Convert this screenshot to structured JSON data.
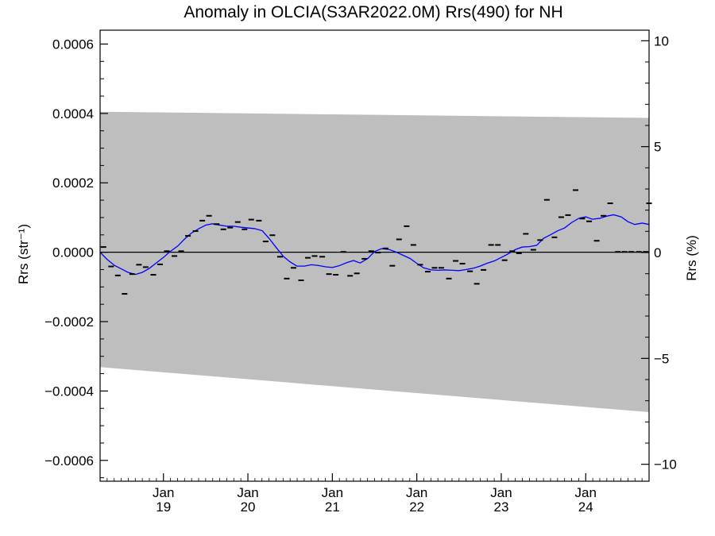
{
  "chart_data": {
    "type": "line",
    "title": "Anomaly in OLCIA(S3AR2022.0M) Rrs(490) for NH",
    "ylabel": "Rrs (str⁻¹)",
    "ylabel_right": "Rrs (%)",
    "ylim": [
      -0.00066,
      0.00064
    ],
    "ylim_right": [
      -10.8,
      10.5
    ],
    "xlim": [
      2018.25,
      2024.75
    ],
    "y_ticks": [
      {
        "value": 0.0006,
        "label": "0.0006"
      },
      {
        "value": 0.0004,
        "label": "0.0004"
      },
      {
        "value": 0.0002,
        "label": "0.0002"
      },
      {
        "value": 0.0,
        "label": "0.0000"
      },
      {
        "value": -0.0002,
        "label": "−0.0002"
      },
      {
        "value": -0.0004,
        "label": "−0.0004"
      },
      {
        "value": -0.0006,
        "label": "−0.0006"
      }
    ],
    "y_ticks_right": [
      {
        "value": 10,
        "label": "10"
      },
      {
        "value": 5,
        "label": "5"
      },
      {
        "value": 0,
        "label": "0"
      },
      {
        "value": -5,
        "label": "−5"
      },
      {
        "value": -10,
        "label": "−10"
      }
    ],
    "x_ticks": [
      {
        "value": 2019.0,
        "label": "Jan",
        "sublabel": "19"
      },
      {
        "value": 2020.0,
        "label": "Jan",
        "sublabel": "20"
      },
      {
        "value": 2021.0,
        "label": "Jan",
        "sublabel": "21"
      },
      {
        "value": 2022.0,
        "label": "Jan",
        "sublabel": "22"
      },
      {
        "value": 2023.0,
        "label": "Jan",
        "sublabel": "23"
      },
      {
        "value": 2024.0,
        "label": "Jan",
        "sublabel": "24"
      }
    ],
    "band": {
      "x": [
        2018.25,
        2024.75
      ],
      "upper": [
        0.000405,
        0.000387
      ],
      "lower": [
        -0.000331,
        -0.000461
      ],
      "color": "#bebebe"
    },
    "zero_line": 0.0,
    "monthly_points": {
      "color": "#000000",
      "x": [
        2018.29,
        2018.38,
        2018.46,
        2018.54,
        2018.63,
        2018.71,
        2018.79,
        2018.88,
        2018.96,
        2019.04,
        2019.13,
        2019.21,
        2019.29,
        2019.38,
        2019.46,
        2019.54,
        2019.63,
        2019.71,
        2019.79,
        2019.88,
        2019.96,
        2020.04,
        2020.13,
        2020.21,
        2020.29,
        2020.38,
        2020.46,
        2020.54,
        2020.63,
        2020.71,
        2020.79,
        2020.88,
        2020.96,
        2021.04,
        2021.13,
        2021.21,
        2021.29,
        2021.38,
        2021.46,
        2021.54,
        2021.63,
        2021.71,
        2021.79,
        2021.88,
        2021.96,
        2022.04,
        2022.13,
        2022.21,
        2022.29,
        2022.38,
        2022.46,
        2022.54,
        2022.63,
        2022.71,
        2022.79,
        2022.88,
        2022.96,
        2023.04,
        2023.13,
        2023.21,
        2023.29,
        2023.38,
        2023.46,
        2023.54,
        2023.63,
        2023.71,
        2023.79,
        2023.88,
        2023.96,
        2024.04,
        2024.13,
        2024.21,
        2024.29,
        2024.38,
        2024.46,
        2024.54,
        2024.63,
        2024.71,
        2024.75
      ],
      "values": [
        1.5e-05,
        -4.1e-05,
        -6.7e-05,
        -0.00012,
        -6.3e-05,
        -3.6e-05,
        -4.3e-05,
        -6.5e-05,
        -3.5e-05,
        3e-06,
        -1.1e-05,
        3e-06,
        4.7e-05,
        6.1e-05,
        9.1e-05,
        0.000105,
        8.1e-05,
        6.6e-05,
        7.1e-05,
        8.7e-05,
        6.6e-05,
        9.4e-05,
        9.1e-05,
        3.1e-05,
        4.9e-05,
        -1.3e-05,
        -7.6e-05,
        -4.5e-05,
        -8.1e-05,
        -1.6e-05,
        -1.1e-05,
        -1.3e-05,
        -6.3e-05,
        -6.5e-05,
        1e-06,
        -6.8e-05,
        -6.1e-05,
        -1.9e-05,
        3e-06,
        -1e-06,
        1.1e-05,
        -3.9e-05,
        3.7e-05,
        7.5e-05,
        2.1e-05,
        -3.6e-05,
        -5.6e-05,
        -4.5e-05,
        -4.5e-05,
        -7.6e-05,
        -2.5e-05,
        -3.3e-05,
        -5.5e-05,
        -9.1e-05,
        -5.1e-05,
        2.1e-05,
        2.1e-05,
        -2.3e-05,
        3e-06,
        -3e-06,
        5.3e-05,
        7e-06,
        3.5e-05,
        0.000151,
        4.3e-05,
        0.000101,
        0.000107,
        0.000179,
        9.7e-05,
        8.9e-05,
        3.3e-05,
        0.000105,
        0.000141,
        1e-06,
        1e-06,
        1e-06,
        1e-06,
        1e-06,
        0.000141
      ]
    },
    "smoothed_series": {
      "color": "#0000ff",
      "x": [
        2018.25,
        2018.33,
        2018.42,
        2018.5,
        2018.58,
        2018.67,
        2018.75,
        2018.83,
        2018.92,
        2019.0,
        2019.08,
        2019.17,
        2019.25,
        2019.33,
        2019.42,
        2019.5,
        2019.58,
        2019.67,
        2019.75,
        2019.83,
        2019.92,
        2020.0,
        2020.08,
        2020.17,
        2020.25,
        2020.33,
        2020.42,
        2020.5,
        2020.58,
        2020.67,
        2020.75,
        2020.83,
        2020.92,
        2021.0,
        2021.08,
        2021.17,
        2021.25,
        2021.33,
        2021.42,
        2021.5,
        2021.58,
        2021.67,
        2021.75,
        2021.83,
        2021.92,
        2022.0,
        2022.08,
        2022.17,
        2022.25,
        2022.33,
        2022.42,
        2022.5,
        2022.58,
        2022.67,
        2022.75,
        2022.83,
        2022.92,
        2023.0,
        2023.08,
        2023.17,
        2023.25,
        2023.33,
        2023.42,
        2023.5,
        2023.58,
        2023.67,
        2023.75,
        2023.83,
        2023.92,
        2024.0,
        2024.08,
        2024.17,
        2024.25,
        2024.33,
        2024.42,
        2024.5,
        2024.58,
        2024.67,
        2024.75
      ],
      "values": [
        0.0,
        -2e-05,
        -3.8e-05,
        -4.8e-05,
        -5.8e-05,
        -6.4e-05,
        -5.8e-05,
        -4.7e-05,
        -3e-05,
        -1.5e-05,
        2e-06,
        1.8e-05,
        3.8e-05,
        5.5e-05,
        6.8e-05,
        7.8e-05,
        8.2e-05,
        7.8e-05,
        7.5e-05,
        7.5e-05,
        7.2e-05,
        7e-05,
        6.8e-05,
        6.2e-05,
        4e-05,
        1.5e-05,
        -1.2e-05,
        -2.8e-05,
        -4e-05,
        -4e-05,
        -3.6e-05,
        -3.8e-05,
        -4.2e-05,
        -4.4e-05,
        -3.9e-05,
        -3e-05,
        -2.4e-05,
        -3.1e-05,
        -1.8e-05,
        2e-06,
        1e-05,
        8e-06,
        1e-06,
        -8e-06,
        -1.8e-05,
        -3.2e-05,
        -4.5e-05,
        -5.1e-05,
        -5.2e-05,
        -5.1e-05,
        -5.2e-05,
        -5.3e-05,
        -5e-05,
        -4.6e-05,
        -4e-05,
        -3.2e-05,
        -2.5e-05,
        -1.5e-05,
        -5e-06,
        8e-06,
        1.5e-05,
        1.6e-05,
        2e-05,
        4e-05,
        5e-05,
        6.2e-05,
        7e-05,
        8.5e-05,
        9.8e-05,
        0.000102,
        9.5e-05,
        9.8e-05,
        0.000104,
        0.000108,
        0.000102,
        8.8e-05,
        8e-05,
        8.4e-05,
        8e-05
      ]
    }
  }
}
